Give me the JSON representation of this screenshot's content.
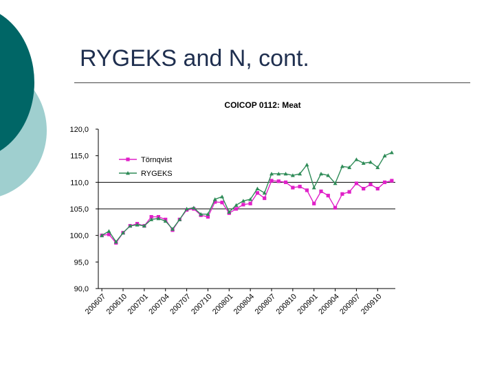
{
  "slide": {
    "title": "RYGEKS and N, cont."
  },
  "colors": {
    "tornqvist": "#e020c8",
    "rygeks": "#2e8b57",
    "teal_dark": "#006666",
    "teal_light": "#9fcfcf"
  },
  "chart_data": {
    "type": "line",
    "title": "COICOP 0112: Meat",
    "xlabel": "",
    "ylabel": "",
    "ylim": [
      90,
      120
    ],
    "y_ticks": [
      "90,0",
      "95,0",
      "100,0",
      "105,0",
      "110,0",
      "115,0",
      "120,0"
    ],
    "x": [
      "200607",
      "200608",
      "200609",
      "200610",
      "200611",
      "200612",
      "200701",
      "200702",
      "200703",
      "200704",
      "200705",
      "200706",
      "200707",
      "200708",
      "200709",
      "200710",
      "200711",
      "200712",
      "200801",
      "200802",
      "200803",
      "200804",
      "200805",
      "200806",
      "200807",
      "200808",
      "200809",
      "200810",
      "200811",
      "200812",
      "200901",
      "200902",
      "200903",
      "200904",
      "200905",
      "200906",
      "200907",
      "200908",
      "200909",
      "200910",
      "200911",
      "200912"
    ],
    "x_tick_labels": [
      "200607",
      "200610",
      "200701",
      "200704",
      "200707",
      "200710",
      "200801",
      "200804",
      "200807",
      "200810",
      "200901",
      "200904",
      "200907",
      "200910"
    ],
    "horizontal_gridlines": [
      105,
      110
    ],
    "legend_placement": "top-left",
    "series": [
      {
        "name": "Törnqvist",
        "marker": "square",
        "values": [
          100.0,
          100.2,
          98.6,
          100.5,
          101.8,
          102.2,
          101.8,
          103.5,
          103.5,
          103.0,
          101.0,
          103.0,
          104.8,
          105.0,
          103.8,
          103.5,
          106.3,
          106.2,
          104.2,
          105.0,
          105.8,
          106.0,
          108.0,
          107.0,
          110.3,
          110.2,
          110.0,
          109.0,
          109.2,
          108.5,
          106.0,
          108.3,
          107.5,
          105.2,
          107.8,
          108.2,
          109.8,
          108.8,
          109.6,
          108.8,
          110.0,
          110.3
        ]
      },
      {
        "name": "RYGEKS",
        "marker": "triangle",
        "values": [
          100.0,
          100.8,
          98.8,
          100.5,
          101.8,
          102.0,
          101.8,
          103.0,
          103.2,
          102.7,
          101.2,
          103.0,
          105.0,
          105.2,
          104.0,
          104.0,
          106.8,
          107.3,
          104.4,
          105.7,
          106.5,
          106.8,
          108.8,
          108.0,
          111.6,
          111.6,
          111.6,
          111.3,
          111.6,
          113.3,
          109.0,
          111.6,
          111.3,
          109.8,
          113.0,
          112.8,
          114.3,
          113.6,
          113.8,
          112.8,
          115.0,
          115.6
        ]
      }
    ]
  }
}
